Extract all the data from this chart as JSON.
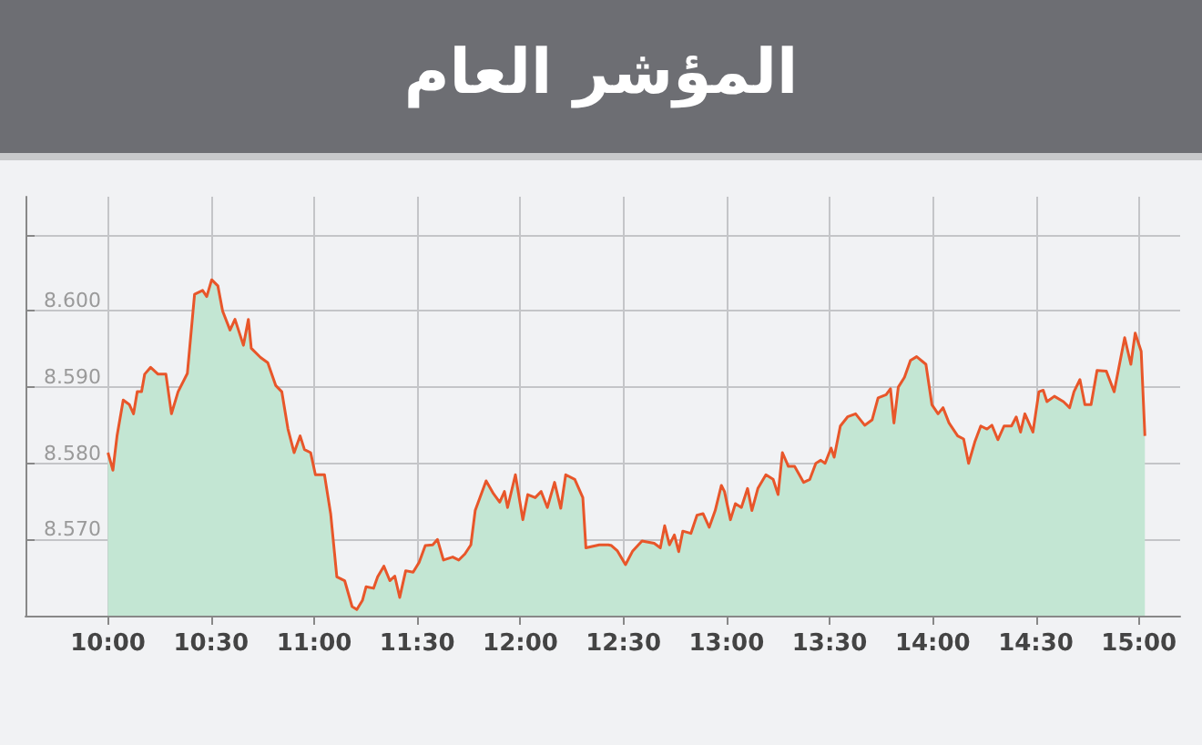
{
  "chart_data": {
    "type": "area",
    "title": "المؤشر العام",
    "x": [
      10.0,
      10.024,
      10.044,
      10.074,
      10.104,
      10.124,
      10.142,
      10.163,
      10.178,
      10.207,
      10.243,
      10.281,
      10.308,
      10.34,
      10.385,
      10.42,
      10.459,
      10.479,
      10.503,
      10.533,
      10.556,
      10.592,
      10.616,
      10.657,
      10.681,
      10.695,
      10.74,
      10.775,
      10.814,
      10.843,
      10.873,
      10.903,
      10.932,
      10.953,
      10.983,
      11.006,
      11.05,
      11.08,
      11.11,
      11.148,
      11.184,
      11.207,
      11.234,
      11.252,
      11.288,
      11.308,
      11.338,
      11.367,
      11.391,
      11.415,
      11.444,
      11.48,
      11.509,
      11.539,
      11.575,
      11.598,
      11.627,
      11.672,
      11.701,
      11.731,
      11.76,
      11.781,
      11.834,
      11.87,
      11.9,
      11.923,
      11.938,
      11.976,
      12.012,
      12.036,
      12.072,
      12.101,
      12.131,
      12.166,
      12.196,
      12.22,
      12.264,
      12.303,
      12.318,
      12.383,
      12.427,
      12.442,
      12.471,
      12.51,
      12.545,
      12.59,
      12.649,
      12.679,
      12.7,
      12.723,
      12.747,
      12.768,
      12.788,
      12.827,
      12.857,
      12.886,
      12.916,
      12.945,
      12.975,
      12.99,
      13.019,
      13.043,
      13.072,
      13.102,
      13.123,
      13.152,
      13.191,
      13.226,
      13.25,
      13.271,
      13.3,
      13.33,
      13.374,
      13.404,
      13.433,
      13.457,
      13.478,
      13.507,
      13.522,
      13.552,
      13.587,
      13.626,
      13.67,
      13.706,
      13.735,
      13.774,
      13.795,
      13.812,
      13.833,
      13.863,
      13.892,
      13.922,
      13.967,
      13.996,
      14.026,
      14.05,
      14.079,
      14.121,
      14.15,
      14.174,
      14.204,
      14.233,
      14.263,
      14.287,
      14.316,
      14.346,
      14.382,
      14.405,
      14.426,
      14.447,
      14.486,
      14.515,
      14.536,
      14.554,
      14.59,
      14.634,
      14.664,
      14.685,
      14.714,
      14.738,
      14.768,
      14.797,
      14.842,
      14.88,
      14.931,
      14.961,
      14.982,
      15.011,
      15.029
    ],
    "series": [
      {
        "color": "#e8562a",
        "values": [
          8.5814,
          8.5791,
          8.5836,
          8.5883,
          8.5877,
          8.5865,
          8.5894,
          8.5894,
          8.5917,
          8.5926,
          8.5917,
          8.5917,
          8.5865,
          8.5894,
          8.5918,
          8.6022,
          8.6027,
          8.6019,
          8.6041,
          8.6033,
          8.6,
          8.5975,
          8.5989,
          8.5955,
          8.5989,
          8.5951,
          8.5939,
          8.5932,
          8.5902,
          8.5894,
          8.5845,
          8.5814,
          8.5836,
          8.5818,
          8.5814,
          8.5785,
          8.5785,
          8.5734,
          8.5651,
          8.5646,
          8.5612,
          8.5608,
          8.562,
          8.5638,
          8.5636,
          8.5651,
          8.5665,
          8.5646,
          8.5652,
          8.5624,
          8.5659,
          8.5657,
          8.567,
          8.5692,
          8.5693,
          8.57,
          8.5673,
          8.5677,
          8.5673,
          8.5681,
          8.5693,
          8.5738,
          8.5777,
          8.576,
          8.5749,
          8.5763,
          8.5742,
          8.5785,
          8.5726,
          8.5759,
          8.5755,
          8.5763,
          8.5742,
          8.5775,
          8.5741,
          8.5785,
          8.5779,
          8.5755,
          8.5689,
          8.5693,
          8.5693,
          8.5692,
          8.5685,
          8.5667,
          8.5685,
          8.5698,
          8.5695,
          8.5689,
          8.5718,
          8.5693,
          8.5706,
          8.5684,
          8.5711,
          8.5708,
          8.5732,
          8.5734,
          8.5716,
          8.5738,
          8.5771,
          8.5763,
          8.5726,
          8.5747,
          8.5742,
          8.5767,
          8.5738,
          8.5767,
          8.5785,
          8.5779,
          8.5759,
          8.5814,
          8.5796,
          8.5796,
          8.5775,
          8.5779,
          8.58,
          8.5804,
          8.58,
          8.582,
          8.5808,
          8.5849,
          8.5861,
          8.5865,
          8.585,
          8.5857,
          8.5886,
          8.589,
          8.5898,
          8.5853,
          8.59,
          8.5913,
          8.5935,
          8.594,
          8.593,
          8.5877,
          8.5865,
          8.5873,
          8.5853,
          8.5836,
          8.5832,
          8.58,
          8.5828,
          8.5849,
          8.5845,
          8.585,
          8.5831,
          8.5849,
          8.5849,
          8.5861,
          8.5841,
          8.5865,
          8.5841,
          8.5894,
          8.5896,
          8.5881,
          8.5888,
          8.5881,
          8.5873,
          8.5894,
          8.591,
          8.5877,
          8.5877,
          8.5922,
          8.5921,
          8.5894,
          8.5965,
          8.593,
          8.5971,
          8.5947,
          8.5836
        ]
      }
    ],
    "xlim": [
      9.6,
      15.2
    ],
    "xticks": [
      {
        "value": 10,
        "label": "10:00"
      },
      {
        "value": 10.5,
        "label": "10:30"
      },
      {
        "value": 11,
        "label": "11:00"
      },
      {
        "value": 11.5,
        "label": "11:30"
      },
      {
        "value": 12,
        "label": "12:00"
      },
      {
        "value": 12.5,
        "label": "12:30"
      },
      {
        "value": 13,
        "label": "13:00"
      },
      {
        "value": 13.5,
        "label": "13:30"
      },
      {
        "value": 14,
        "label": "14:00"
      },
      {
        "value": 14.5,
        "label": "14:30"
      },
      {
        "value": 15,
        "label": "15:00"
      }
    ],
    "ylim": [
      8.56,
      8.615
    ],
    "yticks": [
      {
        "value": 8.56,
        "label": null
      },
      {
        "value": 8.57,
        "label": "8.570"
      },
      {
        "value": 8.58,
        "label": "8.580"
      },
      {
        "value": 8.59,
        "label": "8.590"
      },
      {
        "value": 8.6,
        "label": "8.600"
      },
      {
        "value": 8.61,
        "label": null
      }
    ],
    "grid": true,
    "marker": "none",
    "line_style": "solid"
  }
}
